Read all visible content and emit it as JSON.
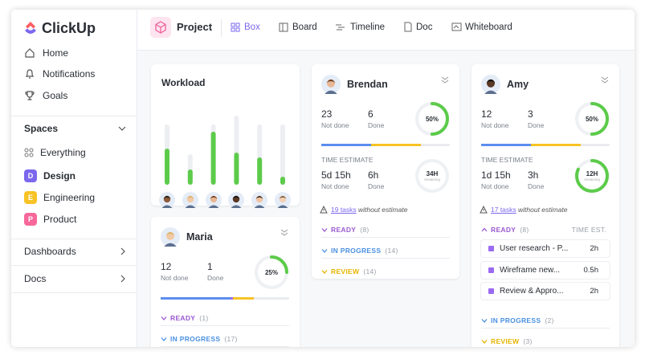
{
  "sidebar": {
    "logo": "ClickUp",
    "nav": [
      "Home",
      "Notifications",
      "Goals"
    ],
    "spaces_title": "Spaces",
    "spaces": [
      {
        "label": "Everything"
      },
      {
        "badge": "D",
        "label": "Design"
      },
      {
        "badge": "E",
        "label": "Engineering"
      },
      {
        "badge": "P",
        "label": "Product"
      }
    ],
    "sections": [
      "Dashboards",
      "Docs"
    ]
  },
  "topbar": {
    "title": "Project",
    "tabs": [
      "Box",
      "Board",
      "Timeline",
      "Doc",
      "Whiteboard"
    ]
  },
  "workload": {
    "title": "Workload",
    "bars": [
      {
        "capacity": 75,
        "load": 45
      },
      {
        "capacity": 38,
        "load": 19
      },
      {
        "capacity": 75,
        "load": 66
      },
      {
        "capacity": 86,
        "load": 40
      },
      {
        "capacity": 75,
        "load": 34
      },
      {
        "capacity": 75,
        "load": 10
      }
    ]
  },
  "cards": [
    {
      "name": "Maria",
      "not_done": "12",
      "not_done_label": "Not done",
      "done": "1",
      "done_label": "Done",
      "percent": {
        "value": 25,
        "label": "25%"
      },
      "statuses": [
        {
          "label": "READY",
          "count": "(1)"
        },
        {
          "label": "IN PROGRESS",
          "count": "(17)"
        }
      ]
    },
    {
      "name": "Brendan",
      "not_done": "23",
      "not_done_label": "Not done",
      "done": "6",
      "done_label": "Done",
      "percent": {
        "value": 50,
        "label": "50%"
      },
      "time_title": "TIME ESTIMATE",
      "time_not_done": "5d 15h",
      "time_not_done_label": "Not done",
      "time_done": "6h",
      "time_done_label": "Done",
      "remaining": "34H",
      "remaining_label": "remaining",
      "tasks_link": "19 tasks",
      "tasks_note": "without estimate",
      "statuses": [
        {
          "label": "READY",
          "count": "(8)"
        },
        {
          "label": "IN PROGRESS",
          "count": "(14)"
        },
        {
          "label": "REVIEW",
          "count": "(14)"
        }
      ]
    },
    {
      "name": "Amy",
      "not_done": "12",
      "not_done_label": "Not done",
      "done": "3",
      "done_label": "Done",
      "percent": {
        "value": 50,
        "label": "50%"
      },
      "time_title": "TIME ESTIMATE",
      "time_not_done": "1d 15h",
      "time_not_done_label": "Not done",
      "time_done": "3h",
      "time_done_label": "Done",
      "remaining": "12H",
      "remaining_label": "remaining",
      "tasks_link": "17 tasks",
      "tasks_note": "without estimate",
      "time_est_header": "TIME EST.",
      "tasks": [
        {
          "title": "User research - P...",
          "time": "2h"
        },
        {
          "title": "Wireframe new...",
          "time": "0.5h"
        },
        {
          "title": "Review & Appro...",
          "time": "2h"
        }
      ],
      "statuses": [
        {
          "label": "READY",
          "count": "(8)"
        },
        {
          "label": "IN PROGRESS",
          "count": "(2)"
        },
        {
          "label": "REVIEW",
          "count": "(3)"
        }
      ]
    }
  ]
}
